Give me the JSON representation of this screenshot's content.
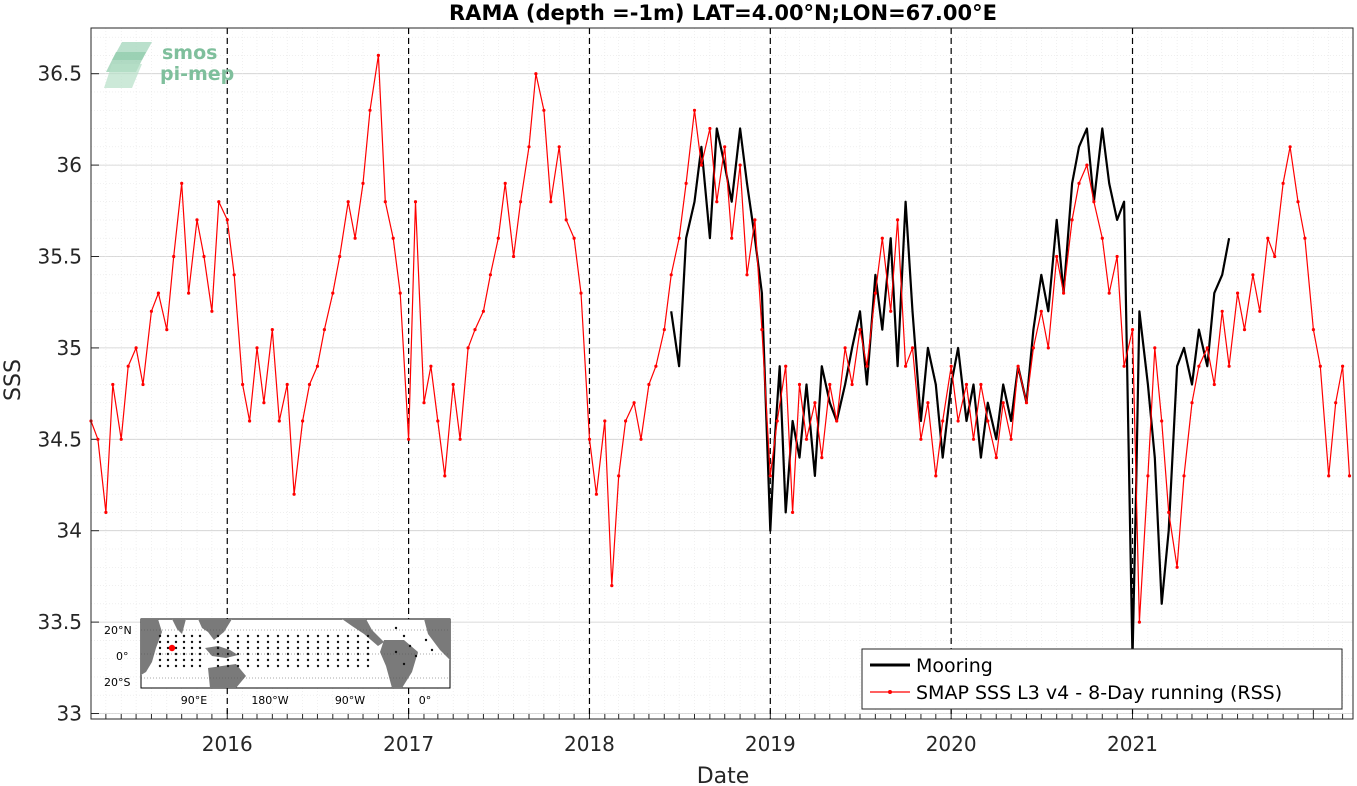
{
  "chart_data": {
    "type": "line",
    "title": "RAMA (depth =-1m) LAT=4.00°N;LON=67.00°E",
    "xlabel": "Date",
    "ylabel": "SSS",
    "xlim": [
      "2015-04-01",
      "2022-03-22"
    ],
    "ylim": [
      32.97,
      36.75
    ],
    "x_ticks": [
      "2016",
      "2017",
      "2018",
      "2019",
      "2020",
      "2021"
    ],
    "x_tick_dates": [
      "2016-01-01",
      "2017-01-01",
      "2018-01-01",
      "2019-01-01",
      "2020-01-01",
      "2021-01-01"
    ],
    "y_ticks": [
      "33",
      "33.5",
      "34",
      "34.5",
      "35",
      "35.5",
      "36",
      "36.5"
    ],
    "y_tick_values": [
      33,
      33.5,
      34,
      34.5,
      35,
      35.5,
      36,
      36.5
    ],
    "vertical_dashed_lines": [
      "2016-01-01",
      "2017-01-01",
      "2018-01-01",
      "2019-01-01",
      "2020-01-01",
      "2021-01-01"
    ],
    "grid": true,
    "legend_position": "bottom-right",
    "series": [
      {
        "name": "Mooring",
        "color": "#000000",
        "x": [
          "2018-06-15",
          "2018-07-01",
          "2018-07-15",
          "2018-08-01",
          "2018-08-15",
          "2018-09-01",
          "2018-09-15",
          "2018-10-01",
          "2018-10-15",
          "2018-11-01",
          "2018-11-15",
          "2018-12-01",
          "2018-12-15",
          "2019-01-01",
          "2019-01-10",
          "2019-01-20",
          "2019-02-01",
          "2019-02-15",
          "2019-03-01",
          "2019-03-15",
          "2019-04-01",
          "2019-04-15",
          "2019-05-01",
          "2019-05-15",
          "2019-06-01",
          "2019-06-15",
          "2019-07-01",
          "2019-07-15",
          "2019-08-01",
          "2019-08-15",
          "2019-09-01",
          "2019-09-15",
          "2019-10-01",
          "2019-10-15",
          "2019-11-01",
          "2019-11-15",
          "2019-12-01",
          "2019-12-15",
          "2020-01-01",
          "2020-01-15",
          "2020-02-01",
          "2020-02-15",
          "2020-03-01",
          "2020-03-15",
          "2020-04-01",
          "2020-04-15",
          "2020-05-01",
          "2020-05-15",
          "2020-06-01",
          "2020-06-15",
          "2020-07-01",
          "2020-07-15",
          "2020-08-01",
          "2020-08-15",
          "2020-09-01",
          "2020-09-15",
          "2020-10-01",
          "2020-10-15",
          "2020-11-01",
          "2020-11-15",
          "2020-12-01",
          "2020-12-15",
          "2021-01-01",
          "2021-01-08",
          "2021-01-15",
          "2021-02-01",
          "2021-02-15",
          "2021-03-01",
          "2021-03-15",
          "2021-04-01",
          "2021-04-15",
          "2021-05-01",
          "2021-05-15",
          "2021-06-01",
          "2021-06-15",
          "2021-07-01",
          "2021-07-15"
        ],
        "y": [
          35.2,
          34.9,
          35.6,
          35.8,
          36.1,
          35.6,
          36.2,
          36.0,
          35.8,
          36.2,
          35.9,
          35.6,
          35.3,
          34.0,
          34.5,
          34.9,
          34.1,
          34.6,
          34.4,
          34.8,
          34.3,
          34.9,
          34.7,
          34.6,
          34.8,
          35.0,
          35.2,
          34.8,
          35.4,
          35.1,
          35.6,
          34.9,
          35.8,
          35.2,
          34.6,
          35.0,
          34.8,
          34.4,
          34.8,
          35.0,
          34.6,
          34.8,
          34.4,
          34.7,
          34.5,
          34.8,
          34.6,
          34.9,
          34.7,
          35.1,
          35.4,
          35.2,
          35.7,
          35.3,
          35.9,
          36.1,
          36.2,
          35.8,
          36.2,
          35.9,
          35.7,
          35.8,
          33.3,
          34.2,
          35.2,
          34.8,
          34.4,
          33.6,
          34.0,
          34.9,
          35.0,
          34.8,
          35.1,
          34.9,
          35.3,
          35.4,
          35.6
        ]
      },
      {
        "name": "SMAP SSS L3 v4 - 8-Day running (RSS)",
        "color": "#ff0000",
        "x": [
          "2015-04-01",
          "2015-04-15",
          "2015-05-01",
          "2015-05-15",
          "2015-06-01",
          "2015-06-15",
          "2015-07-01",
          "2015-07-15",
          "2015-08-01",
          "2015-08-15",
          "2015-09-01",
          "2015-09-15",
          "2015-10-01",
          "2015-10-15",
          "2015-11-01",
          "2015-11-15",
          "2015-12-01",
          "2015-12-15",
          "2016-01-01",
          "2016-01-15",
          "2016-02-01",
          "2016-02-15",
          "2016-03-01",
          "2016-03-15",
          "2016-04-01",
          "2016-04-15",
          "2016-05-01",
          "2016-05-15",
          "2016-06-01",
          "2016-06-15",
          "2016-07-01",
          "2016-07-15",
          "2016-08-01",
          "2016-08-15",
          "2016-09-01",
          "2016-09-15",
          "2016-10-01",
          "2016-10-15",
          "2016-11-01",
          "2016-11-15",
          "2016-12-01",
          "2016-12-15",
          "2017-01-01",
          "2017-01-15",
          "2017-02-01",
          "2017-02-15",
          "2017-03-01",
          "2017-03-15",
          "2017-04-01",
          "2017-04-15",
          "2017-05-01",
          "2017-05-15",
          "2017-06-01",
          "2017-06-15",
          "2017-07-01",
          "2017-07-15",
          "2017-08-01",
          "2017-08-15",
          "2017-09-01",
          "2017-09-15",
          "2017-10-01",
          "2017-10-15",
          "2017-11-01",
          "2017-11-15",
          "2017-12-01",
          "2017-12-15",
          "2018-01-01",
          "2018-01-15",
          "2018-02-01",
          "2018-02-15",
          "2018-03-01",
          "2018-03-15",
          "2018-04-01",
          "2018-04-15",
          "2018-05-01",
          "2018-05-15",
          "2018-06-01",
          "2018-06-15",
          "2018-07-01",
          "2018-07-15",
          "2018-08-01",
          "2018-08-15",
          "2018-09-01",
          "2018-09-15",
          "2018-10-01",
          "2018-10-15",
          "2018-11-01",
          "2018-11-15",
          "2018-12-01",
          "2018-12-15",
          "2019-01-01",
          "2019-01-15",
          "2019-02-01",
          "2019-02-15",
          "2019-03-01",
          "2019-03-15",
          "2019-04-01",
          "2019-04-15",
          "2019-05-01",
          "2019-05-15",
          "2019-06-01",
          "2019-06-15",
          "2019-07-01",
          "2019-07-15",
          "2019-08-01",
          "2019-08-15",
          "2019-09-01",
          "2019-09-15",
          "2019-10-01",
          "2019-10-15",
          "2019-11-01",
          "2019-11-15",
          "2019-12-01",
          "2019-12-15",
          "2020-01-01",
          "2020-01-15",
          "2020-02-01",
          "2020-02-15",
          "2020-03-01",
          "2020-03-15",
          "2020-04-01",
          "2020-04-15",
          "2020-05-01",
          "2020-05-15",
          "2020-06-01",
          "2020-06-15",
          "2020-07-01",
          "2020-07-15",
          "2020-08-01",
          "2020-08-15",
          "2020-09-01",
          "2020-09-15",
          "2020-10-01",
          "2020-10-15",
          "2020-11-01",
          "2020-11-15",
          "2020-12-01",
          "2020-12-15",
          "2021-01-01",
          "2021-01-15",
          "2021-02-01",
          "2021-02-15",
          "2021-03-01",
          "2021-03-15",
          "2021-04-01",
          "2021-04-15",
          "2021-05-01",
          "2021-05-15",
          "2021-06-01",
          "2021-06-15",
          "2021-07-01",
          "2021-07-15",
          "2021-08-01",
          "2021-08-15",
          "2021-09-01",
          "2021-09-15",
          "2021-10-01",
          "2021-10-15",
          "2021-11-01",
          "2021-11-15",
          "2021-12-01",
          "2021-12-15",
          "2022-01-01",
          "2022-01-15",
          "2022-02-01",
          "2022-02-15",
          "2022-03-01",
          "2022-03-15"
        ],
        "y": [
          34.6,
          34.5,
          34.1,
          34.8,
          34.5,
          34.9,
          35.0,
          34.8,
          35.2,
          35.3,
          35.1,
          35.5,
          35.9,
          35.3,
          35.7,
          35.5,
          35.2,
          35.8,
          35.7,
          35.4,
          34.8,
          34.6,
          35.0,
          34.7,
          35.1,
          34.6,
          34.8,
          34.2,
          34.6,
          34.8,
          34.9,
          35.1,
          35.3,
          35.5,
          35.8,
          35.6,
          35.9,
          36.3,
          36.6,
          35.8,
          35.6,
          35.3,
          34.5,
          35.8,
          34.7,
          34.9,
          34.6,
          34.3,
          34.8,
          34.5,
          35.0,
          35.1,
          35.2,
          35.4,
          35.6,
          35.9,
          35.5,
          35.8,
          36.1,
          36.5,
          36.3,
          35.8,
          36.1,
          35.7,
          35.6,
          35.3,
          34.5,
          34.2,
          34.6,
          33.7,
          34.3,
          34.6,
          34.7,
          34.5,
          34.8,
          34.9,
          35.1,
          35.4,
          35.6,
          35.9,
          36.3,
          36.0,
          36.2,
          35.8,
          36.1,
          35.6,
          36.0,
          35.4,
          35.7,
          35.1,
          34.3,
          34.6,
          34.9,
          34.1,
          34.8,
          34.5,
          34.7,
          34.4,
          34.8,
          34.6,
          35.0,
          34.8,
          35.1,
          34.9,
          35.3,
          35.6,
          35.2,
          35.7,
          34.9,
          35.0,
          34.5,
          34.7,
          34.3,
          34.6,
          34.9,
          34.6,
          34.8,
          34.5,
          34.8,
          34.6,
          34.4,
          34.7,
          34.5,
          34.9,
          34.7,
          35.0,
          35.2,
          35.0,
          35.5,
          35.3,
          35.7,
          35.9,
          36.0,
          35.8,
          35.6,
          35.3,
          35.5,
          34.9,
          35.1,
          33.5,
          34.3,
          35.0,
          34.6,
          34.1,
          33.8,
          34.3,
          34.7,
          34.9,
          35.0,
          34.8,
          35.2,
          34.9,
          35.3,
          35.1,
          35.4,
          35.2,
          35.6,
          35.5,
          35.9,
          36.1,
          35.8,
          35.6,
          35.1,
          34.9,
          34.3,
          34.7,
          34.9,
          34.3
        ]
      }
    ]
  },
  "inset_map": {
    "lat_labels": [
      "20°N",
      "0°",
      "20°S"
    ],
    "lon_labels": [
      "90°E",
      "180°W",
      "90°W",
      "0°"
    ]
  },
  "logo": {
    "line1": "smos",
    "line2": "pi-mep"
  },
  "colors": {
    "mooring": "#000000",
    "smap": "#ff0000",
    "grid": "#d9d9d9",
    "logo": "#7fbf9c",
    "land": "#7a7a7a"
  }
}
